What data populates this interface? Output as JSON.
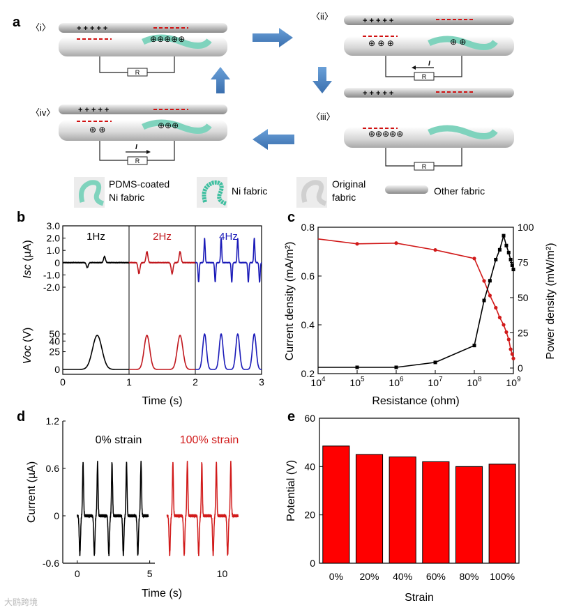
{
  "panel_labels": {
    "a": "a",
    "b": "b",
    "c": "c",
    "d": "d",
    "e": "e"
  },
  "panel_a": {
    "stage_labels": [
      "〈i〉",
      "〈ii〉",
      "〈iii〉",
      "〈iv〉"
    ],
    "resistor_label": "R",
    "current_label": "I",
    "legend": [
      {
        "line1": "PDMS-coated",
        "line2": "Ni fabric"
      },
      {
        "line1": "Ni fabric",
        "line2": ""
      },
      {
        "line1": "Original",
        "line2": "fabric"
      },
      {
        "line1": "Other fabric",
        "line2": ""
      }
    ],
    "colors": {
      "pdms": "#7fd3bd",
      "ni": "#3fbfa0",
      "fabric": "#d8d8d8",
      "arrow": "#4a86c5",
      "charge": "#d01010"
    }
  },
  "chart_data": [
    {
      "panel": "b",
      "type": "line",
      "xlabel": "Time (s)",
      "xticks": [
        "0",
        "1",
        "2",
        "3"
      ],
      "xlim": [
        0,
        3
      ],
      "freq_labels": [
        {
          "text": "1Hz",
          "color": "#000000"
        },
        {
          "text": "2Hz",
          "color": "#c0161c"
        },
        {
          "text": "4Hz",
          "color": "#1a1ab8"
        }
      ],
      "top": {
        "ylabel_italic": "Isc",
        "ylabel_unit": "(µA)",
        "yticks": [
          "3.0",
          "2.0",
          "1.0",
          "0",
          "-1.0",
          "-2.0"
        ],
        "ylim": [
          -2.0,
          3.0
        ]
      },
      "bottom": {
        "ylabel_italic": "Voc",
        "ylabel_unit": "(V)",
        "yticks": [
          "50",
          "40",
          "25",
          "0"
        ],
        "ylim": [
          0,
          55
        ]
      },
      "series": [
        {
          "name": "1Hz",
          "color": "#000000",
          "isc_peaks": [
            {
              "t": 0.37,
              "v": -0.4
            },
            {
              "t": 0.63,
              "v": 0.5
            }
          ],
          "voc_peaks": [
            {
              "t": 0.52,
              "v": 48
            }
          ]
        },
        {
          "name": "2Hz",
          "color": "#c0161c",
          "isc_peaks": [
            {
              "t": 1.15,
              "v": -0.9
            },
            {
              "t": 1.27,
              "v": 0.9
            },
            {
              "t": 1.65,
              "v": -0.9
            },
            {
              "t": 1.77,
              "v": 0.9
            }
          ],
          "voc_peaks": [
            {
              "t": 1.27,
              "v": 48
            },
            {
              "t": 1.77,
              "v": 48
            }
          ]
        },
        {
          "name": "4Hz",
          "color": "#1a1ab8",
          "isc_peaks": [
            {
              "t": 2.05,
              "v": -1.6
            },
            {
              "t": 2.14,
              "v": 2.0
            },
            {
              "t": 2.3,
              "v": -1.6
            },
            {
              "t": 2.39,
              "v": 2.0
            },
            {
              "t": 2.55,
              "v": -1.6
            },
            {
              "t": 2.64,
              "v": 2.0
            },
            {
              "t": 2.8,
              "v": -1.6
            },
            {
              "t": 2.89,
              "v": 2.0
            },
            {
              "t": 2.97,
              "v": -1.6
            }
          ],
          "voc_peaks": [
            {
              "t": 2.14,
              "v": 50
            },
            {
              "t": 2.39,
              "v": 50
            },
            {
              "t": 2.64,
              "v": 50
            },
            {
              "t": 2.89,
              "v": 50
            }
          ]
        }
      ]
    },
    {
      "panel": "c",
      "type": "scatter",
      "xlabel": "Resistance (ohm)",
      "ylabel_left": "Current density (mA/m²)",
      "ylabel_right": "Power density (mW/m²)",
      "xticks": [
        {
          "base": "10",
          "exp": "4"
        },
        {
          "base": "10",
          "exp": "5"
        },
        {
          "base": "10",
          "exp": "6"
        },
        {
          "base": "10",
          "exp": "7"
        },
        {
          "base": "10",
          "exp": "8"
        },
        {
          "base": "10",
          "exp": "9"
        }
      ],
      "xlim_log10": [
        4,
        9
      ],
      "left_yticks": [
        "0.2",
        "0.4",
        "0.6",
        "0.8"
      ],
      "left_ylim": [
        0.2,
        0.8
      ],
      "right_yticks": [
        "0",
        "25",
        "50",
        "75",
        "100"
      ],
      "right_ylim": [
        0,
        100
      ],
      "current_color": "#d11a1a",
      "power_color": "#000000",
      "current_points": [
        [
          5.0,
          0.732
        ],
        [
          6.0,
          0.735
        ],
        [
          7.0,
          0.707
        ],
        [
          8.0,
          0.672
        ],
        [
          8.25,
          0.58
        ],
        [
          8.4,
          0.52
        ],
        [
          8.55,
          0.47
        ],
        [
          8.65,
          0.43
        ],
        [
          8.75,
          0.4
        ],
        [
          8.82,
          0.37
        ],
        [
          8.88,
          0.34
        ],
        [
          8.93,
          0.3
        ],
        [
          8.97,
          0.28
        ],
        [
          9.0,
          0.262
        ]
      ],
      "power_points": [
        [
          5.0,
          0.5
        ],
        [
          6.0,
          0.5
        ],
        [
          7.0,
          4.0
        ],
        [
          8.0,
          16.0
        ],
        [
          8.25,
          48.0
        ],
        [
          8.4,
          62.0
        ],
        [
          8.55,
          77.0
        ],
        [
          8.65,
          84.0
        ],
        [
          8.75,
          94.0
        ],
        [
          8.82,
          87.0
        ],
        [
          8.88,
          82.0
        ],
        [
          8.93,
          77.0
        ],
        [
          8.97,
          73.0
        ],
        [
          9.0,
          70.0
        ]
      ]
    },
    {
      "panel": "d",
      "type": "line",
      "xlabel": "Time (s)",
      "ylabel": "Current (µA)",
      "xticks": [
        "0",
        "5",
        "10"
      ],
      "xlim": [
        -1,
        12
      ],
      "yticks": [
        "1.2",
        "0.6",
        "0",
        "-0.6"
      ],
      "ylim": [
        -0.6,
        1.2
      ],
      "series": [
        {
          "name": "0% strain",
          "color": "#000000",
          "pulses": [
            0.4,
            1.4,
            2.4,
            3.4,
            4.4
          ],
          "peak": 0.68,
          "valley": -0.5
        },
        {
          "name": "100% strain",
          "color": "#d11a1a",
          "pulses": [
            6.6,
            7.6,
            8.6,
            9.6,
            10.6
          ],
          "peak": 0.68,
          "valley": -0.5
        }
      ]
    },
    {
      "panel": "e",
      "type": "bar",
      "xlabel": "Strain",
      "ylabel": "Potential (V)",
      "categories": [
        "0%",
        "20%",
        "40%",
        "60%",
        "80%",
        "100%"
      ],
      "values": [
        48.5,
        45,
        44,
        42,
        40,
        41
      ],
      "yticks": [
        "0",
        "20",
        "40",
        "60"
      ],
      "ylim": [
        0,
        60
      ],
      "bar_color": "#ff0000"
    }
  ],
  "watermark": "大鸥跨境"
}
